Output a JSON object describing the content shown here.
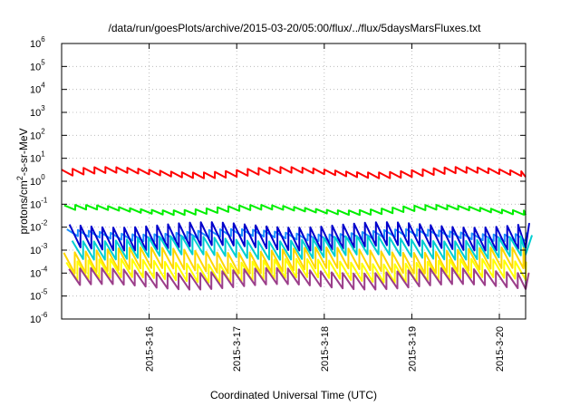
{
  "chart_data": {
    "type": "line",
    "title": "/data/run/goesPlots/archive/2015-03-20/05:00/flux/../flux/5daysMarsFluxes.txt",
    "xlabel": "Coordinated Universal Time (UTC)",
    "ylabel_parts": [
      "protons/cm",
      "2",
      "-s-sr-MeV"
    ],
    "log_y": true,
    "grid": true,
    "legend": "none",
    "xlim": [
      0,
      5.3
    ],
    "ylim_exp": [
      -6,
      6
    ],
    "y_ticks": [
      {
        "base": "10",
        "exp": "-6",
        "v": -6
      },
      {
        "base": "10",
        "exp": "-5",
        "v": -5
      },
      {
        "base": "10",
        "exp": "-4",
        "v": -4
      },
      {
        "base": "10",
        "exp": "-3",
        "v": -3
      },
      {
        "base": "10",
        "exp": "-2",
        "v": -2
      },
      {
        "base": "10",
        "exp": "-1",
        "v": -1
      },
      {
        "base": "10",
        "exp": "0",
        "v": 0
      },
      {
        "base": "10",
        "exp": "1",
        "v": 1
      },
      {
        "base": "10",
        "exp": "2",
        "v": 2
      },
      {
        "base": "10",
        "exp": "3",
        "v": 3
      },
      {
        "base": "10",
        "exp": "4",
        "v": 4
      },
      {
        "base": "10",
        "exp": "5",
        "v": 5
      },
      {
        "base": "10",
        "exp": "6",
        "v": 6
      }
    ],
    "x_ticks": [
      {
        "label": "2015-3-16",
        "v": 1
      },
      {
        "label": "2015-3-17",
        "v": 2
      },
      {
        "label": "2015-3-18",
        "v": 3
      },
      {
        "label": "2015-3-19",
        "v": 4
      },
      {
        "label": "2015-3-20",
        "v": 5
      }
    ],
    "series": [
      {
        "color": "#ff0000",
        "min": 0.25,
        "max": 0.5
      },
      {
        "color": "#00ee00",
        "min": -1.35,
        "max": -1.15
      },
      {
        "color": "#1e90ff",
        "min": -2.5,
        "max": -2.2
      },
      {
        "color": "#0000cd",
        "min": -2.9,
        "max": -1.9
      },
      {
        "color": "#00ced1",
        "min": -3.3,
        "max": -2.5
      },
      {
        "color": "#ffd700",
        "min": -3.9,
        "max": -3.0
      },
      {
        "color": "#ffff00",
        "min": -4.3,
        "max": -3.5
      },
      {
        "color": "#9b3e8a",
        "min": -4.6,
        "max": -3.9
      }
    ]
  }
}
